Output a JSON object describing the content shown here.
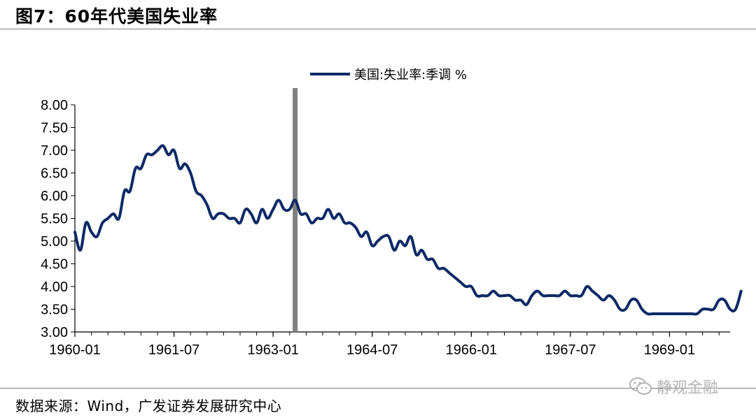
{
  "header": {
    "title": "图7：60年代美国失业率"
  },
  "footer": {
    "source": "数据来源：Wind，广发证券发展研究中心"
  },
  "watermark": {
    "text": "静观金融",
    "icon": "wechat-icon"
  },
  "colors": {
    "series": "#0d2a66",
    "marker": "#808080",
    "axis": "#000000"
  },
  "chart_data": {
    "type": "line",
    "title": "",
    "xlabel": "",
    "ylabel": "",
    "x_start": "1960-01",
    "x_end": "1969-12",
    "x_tick_labels": [
      "1960-01",
      "1961-07",
      "1963-01",
      "1964-07",
      "1966-01",
      "1967-07",
      "1969-01"
    ],
    "y_tick_labels": [
      "8.00",
      "7.50",
      "7.00",
      "6.50",
      "6.00",
      "5.50",
      "5.00",
      "4.50",
      "4.00",
      "3.50",
      "3.00"
    ],
    "ylim": [
      3.0,
      8.0
    ],
    "grid": false,
    "legend": "top",
    "vertical_marker": {
      "x": "1963-05"
    },
    "series": [
      {
        "name": "美国:失业率:季调 %",
        "values": [
          5.2,
          4.8,
          5.4,
          5.2,
          5.1,
          5.4,
          5.5,
          5.6,
          5.5,
          6.1,
          6.1,
          6.6,
          6.6,
          6.9,
          6.9,
          7.0,
          7.1,
          6.9,
          7.0,
          6.6,
          6.7,
          6.5,
          6.1,
          6.0,
          5.8,
          5.5,
          5.6,
          5.6,
          5.5,
          5.5,
          5.4,
          5.7,
          5.6,
          5.4,
          5.7,
          5.5,
          5.7,
          5.9,
          5.7,
          5.7,
          5.9,
          5.6,
          5.6,
          5.4,
          5.5,
          5.5,
          5.7,
          5.5,
          5.6,
          5.4,
          5.4,
          5.3,
          5.1,
          5.2,
          4.9,
          5.0,
          5.1,
          5.1,
          4.8,
          5.0,
          4.9,
          5.1,
          4.7,
          4.8,
          4.6,
          4.6,
          4.4,
          4.4,
          4.3,
          4.2,
          4.1,
          4.0,
          4.0,
          3.8,
          3.8,
          3.8,
          3.9,
          3.8,
          3.8,
          3.8,
          3.7,
          3.7,
          3.6,
          3.8,
          3.9,
          3.8,
          3.8,
          3.8,
          3.8,
          3.9,
          3.8,
          3.8,
          3.8,
          4.0,
          3.9,
          3.8,
          3.7,
          3.8,
          3.7,
          3.5,
          3.5,
          3.7,
          3.7,
          3.5,
          3.4,
          3.4,
          3.4,
          3.4,
          3.4,
          3.4,
          3.4,
          3.4,
          3.4,
          3.4,
          3.5,
          3.5,
          3.5,
          3.7,
          3.7,
          3.5,
          3.5,
          3.9
        ]
      }
    ]
  }
}
